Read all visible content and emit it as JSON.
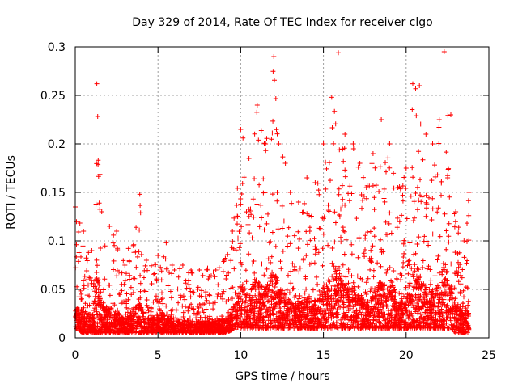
{
  "chart_data": {
    "type": "scatter",
    "title": "Day 329 of 2014, Rate Of TEC Index for receiver clgo",
    "xlabel": "GPS time / hours",
    "ylabel": "ROTI / TECUs",
    "xlim": [
      0,
      25
    ],
    "ylim": [
      0,
      0.3
    ],
    "xticks": [
      0,
      5,
      10,
      15,
      20,
      25
    ],
    "yticks": [
      0,
      0.05,
      0.1,
      0.15,
      0.2,
      0.25,
      0.3
    ],
    "xtick_labels": [
      "0",
      "5",
      "10",
      "15",
      "20",
      "25"
    ],
    "ytick_labels": [
      "0",
      "0.05",
      "0.1",
      "0.15",
      "0.2",
      "0.25",
      "0.3"
    ],
    "grid": true,
    "marker": "+",
    "marker_color": "#ff0000",
    "series": [
      {
        "name": "ROTI",
        "envelope_hours": [
          0.0,
          0.5,
          1.0,
          1.3,
          1.6,
          2.5,
          3.0,
          3.9,
          4.3,
          5.0,
          5.5,
          6.0,
          6.5,
          7.0,
          7.5,
          8.0,
          8.5,
          9.0,
          9.5,
          10.0,
          10.5,
          11.0,
          11.5,
          12.0,
          12.3,
          12.7,
          13.0,
          13.5,
          14.0,
          14.5,
          15.0,
          15.5,
          15.9,
          16.3,
          16.8,
          17.2,
          17.6,
          18.0,
          18.5,
          19.0,
          19.5,
          20.0,
          20.4,
          20.8,
          21.2,
          21.6,
          22.0,
          22.3,
          22.7,
          23.0,
          23.5,
          23.8
        ],
        "envelope_max": [
          0.135,
          0.11,
          0.09,
          0.262,
          0.13,
          0.11,
          0.075,
          0.148,
          0.08,
          0.085,
          0.098,
          0.07,
          0.075,
          0.07,
          0.07,
          0.072,
          0.07,
          0.08,
          0.11,
          0.215,
          0.185,
          0.24,
          0.2,
          0.29,
          0.2,
          0.18,
          0.15,
          0.14,
          0.165,
          0.16,
          0.2,
          0.248,
          0.294,
          0.21,
          0.2,
          0.18,
          0.155,
          0.19,
          0.225,
          0.2,
          0.155,
          0.175,
          0.262,
          0.26,
          0.21,
          0.2,
          0.225,
          0.295,
          0.23,
          0.13,
          0.1,
          0.15
        ],
        "envelope_min": [
          0.01,
          0.005,
          0.005,
          0.005,
          0.005,
          0.005,
          0.005,
          0.005,
          0.005,
          0.005,
          0.005,
          0.005,
          0.005,
          0.005,
          0.005,
          0.005,
          0.005,
          0.005,
          0.008,
          0.01,
          0.01,
          0.01,
          0.01,
          0.01,
          0.01,
          0.01,
          0.01,
          0.01,
          0.01,
          0.01,
          0.01,
          0.01,
          0.01,
          0.01,
          0.01,
          0.01,
          0.01,
          0.01,
          0.01,
          0.01,
          0.01,
          0.01,
          0.01,
          0.01,
          0.01,
          0.01,
          0.01,
          0.01,
          0.01,
          0.005,
          0.005,
          0.005
        ],
        "time_range_hours": [
          0,
          23.8
        ],
        "max_value": 0.295
      }
    ]
  }
}
